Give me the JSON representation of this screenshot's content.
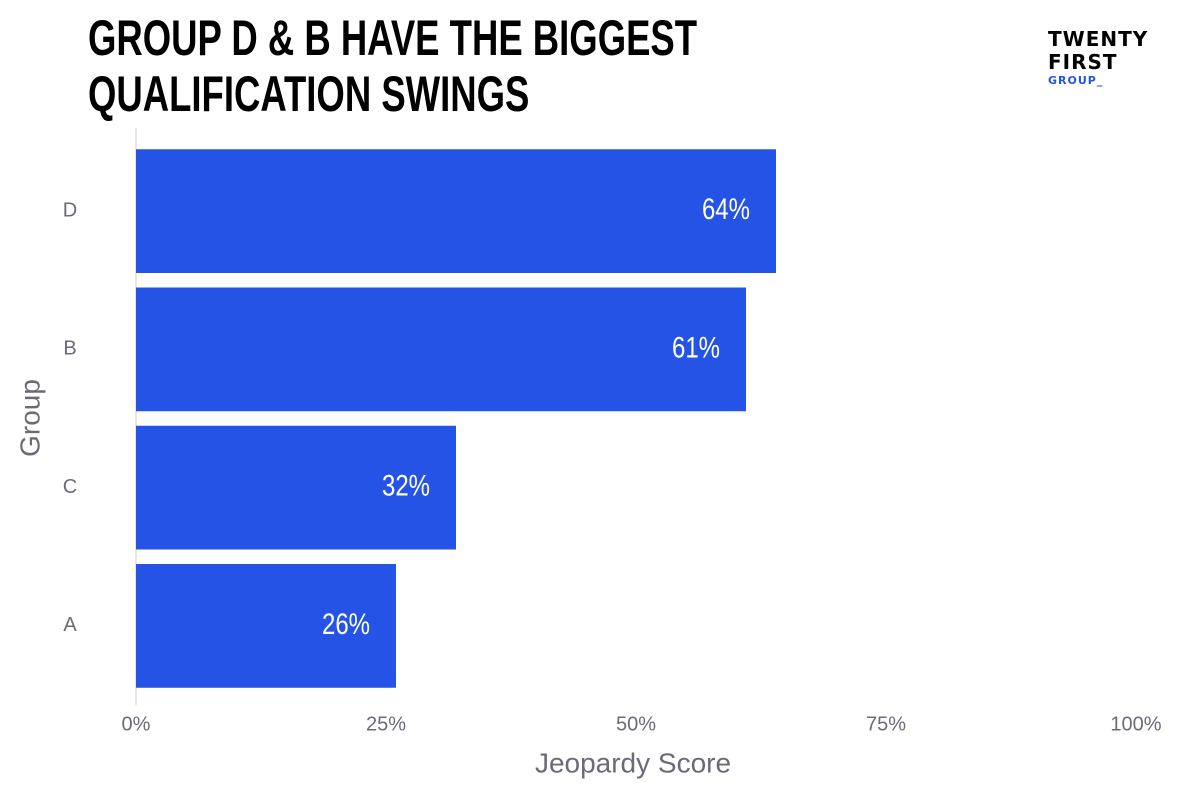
{
  "chart_data": {
    "type": "bar",
    "orientation": "horizontal",
    "title": "GROUP D & B HAVE THE BIGGEST QUALIFICATION SWINGS",
    "x_label": "Jeopardy Score",
    "y_label": "Group",
    "categories": [
      "D",
      "B",
      "C",
      "A"
    ],
    "values": [
      64,
      61,
      32,
      26
    ],
    "value_labels": [
      "64%",
      "61%",
      "32%",
      "26%"
    ],
    "color": "#2453e6",
    "xlim": [
      0,
      100
    ],
    "xticks": [
      {
        "value": 0,
        "label": "0%"
      },
      {
        "value": 25,
        "label": "25%"
      },
      {
        "value": 50,
        "label": "50%"
      },
      {
        "value": 75,
        "label": "75%"
      },
      {
        "value": 100,
        "label": "100%"
      }
    ],
    "grid": false
  },
  "logo": {
    "line1": "TWENTY",
    "line2": "FIRST",
    "line3": "GROUP_"
  }
}
